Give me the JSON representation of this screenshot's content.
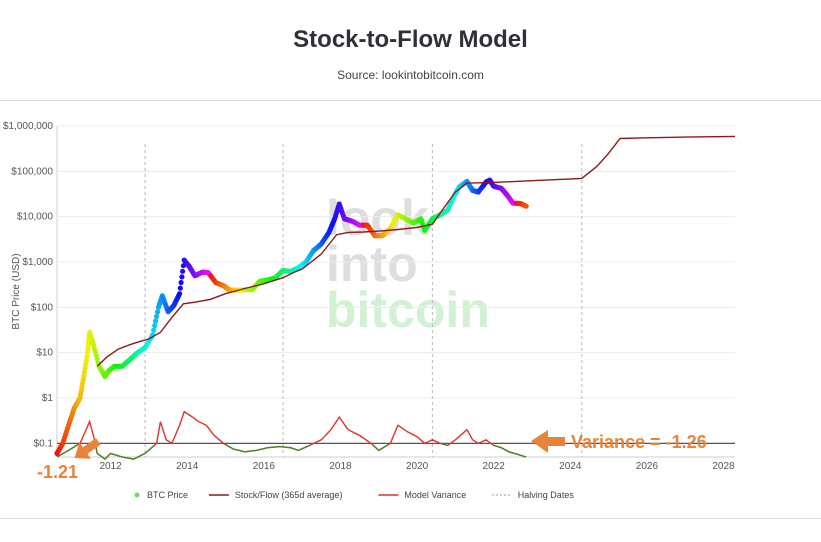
{
  "header": {
    "title": "Stock-to-Flow Model",
    "subtitle": "Source: lookintobitcoin.com"
  },
  "watermark": [
    "look",
    "into",
    "bitcoin"
  ],
  "chart_data": {
    "type": "line",
    "ylabel": "BTC Price (USD)",
    "y_scale": "log",
    "ylim": [
      0.05,
      1000000
    ],
    "xlim": [
      2010.6,
      2028.3
    ],
    "y_ticks": [
      {
        "value": 0.1,
        "label": "$0.1"
      },
      {
        "value": 1,
        "label": "$1"
      },
      {
        "value": 10,
        "label": "$10"
      },
      {
        "value": 100,
        "label": "$100"
      },
      {
        "value": 1000,
        "label": "$1,000"
      },
      {
        "value": 10000,
        "label": "$10,000"
      },
      {
        "value": 100000,
        "label": "$100,000"
      },
      {
        "value": 1000000,
        "label": "$1,000,000"
      }
    ],
    "x_ticks": [
      {
        "value": 2012,
        "label": "2012"
      },
      {
        "value": 2014,
        "label": "2014"
      },
      {
        "value": 2016,
        "label": "2016"
      },
      {
        "value": 2018,
        "label": "2018"
      },
      {
        "value": 2020,
        "label": "2020"
      },
      {
        "value": 2022,
        "label": "2022"
      },
      {
        "value": 2024,
        "label": "2024"
      },
      {
        "value": 2026,
        "label": "2026"
      },
      {
        "value": 2028,
        "label": "2028"
      }
    ],
    "halving_dates": [
      2012.9,
      2016.5,
      2020.4,
      2024.3
    ],
    "series": [
      {
        "name": "BTC Price",
        "color": "#66e066",
        "style": "markers-rainbow",
        "points": [
          [
            2010.6,
            0.06
          ],
          [
            2010.75,
            0.1
          ],
          [
            2010.9,
            0.25
          ],
          [
            2011.05,
            0.6
          ],
          [
            2011.2,
            1
          ],
          [
            2011.3,
            3
          ],
          [
            2011.4,
            10
          ],
          [
            2011.45,
            28
          ],
          [
            2011.55,
            15
          ],
          [
            2011.7,
            5
          ],
          [
            2011.85,
            3
          ],
          [
            2011.95,
            4
          ],
          [
            2012.1,
            5
          ],
          [
            2012.3,
            5
          ],
          [
            2012.5,
            7
          ],
          [
            2012.7,
            10
          ],
          [
            2012.9,
            13
          ],
          [
            2013.1,
            25
          ],
          [
            2013.25,
            100
          ],
          [
            2013.35,
            180
          ],
          [
            2013.5,
            80
          ],
          [
            2013.65,
            110
          ],
          [
            2013.8,
            200
          ],
          [
            2013.92,
            1100
          ],
          [
            2014.05,
            800
          ],
          [
            2014.2,
            500
          ],
          [
            2014.4,
            600
          ],
          [
            2014.55,
            580
          ],
          [
            2014.75,
            350
          ],
          [
            2014.95,
            300
          ],
          [
            2015.1,
            240
          ],
          [
            2015.4,
            240
          ],
          [
            2015.7,
            250
          ],
          [
            2015.9,
            380
          ],
          [
            2016.1,
            400
          ],
          [
            2016.3,
            450
          ],
          [
            2016.5,
            650
          ],
          [
            2016.7,
            620
          ],
          [
            2016.9,
            750
          ],
          [
            2017.1,
            1000
          ],
          [
            2017.3,
            1800
          ],
          [
            2017.5,
            2500
          ],
          [
            2017.7,
            4500
          ],
          [
            2017.85,
            9000
          ],
          [
            2017.97,
            19000
          ],
          [
            2018.1,
            9000
          ],
          [
            2018.3,
            8000
          ],
          [
            2018.5,
            6500
          ],
          [
            2018.7,
            6500
          ],
          [
            2018.9,
            3800
          ],
          [
            2019.1,
            3800
          ],
          [
            2019.3,
            5500
          ],
          [
            2019.5,
            11000
          ],
          [
            2019.7,
            9000
          ],
          [
            2019.9,
            7200
          ],
          [
            2020.1,
            9000
          ],
          [
            2020.2,
            5000
          ],
          [
            2020.4,
            9000
          ],
          [
            2020.6,
            11000
          ],
          [
            2020.8,
            14000
          ],
          [
            2020.97,
            29000
          ],
          [
            2021.1,
            45000
          ],
          [
            2021.3,
            60000
          ],
          [
            2021.45,
            38000
          ],
          [
            2021.6,
            35000
          ],
          [
            2021.8,
            58000
          ],
          [
            2021.9,
            64000
          ],
          [
            2022.0,
            47000
          ],
          [
            2022.2,
            42000
          ],
          [
            2022.35,
            30000
          ],
          [
            2022.5,
            20000
          ],
          [
            2022.7,
            19500
          ],
          [
            2022.85,
            17000
          ]
        ]
      },
      {
        "name": "Stock/Flow (365d average)",
        "color": "#8b1a1a",
        "style": "line",
        "points": [
          [
            2011.65,
            5
          ],
          [
            2011.9,
            8
          ],
          [
            2012.2,
            12
          ],
          [
            2012.5,
            15
          ],
          [
            2012.8,
            18
          ],
          [
            2013.0,
            20
          ],
          [
            2013.3,
            28
          ],
          [
            2013.6,
            60
          ],
          [
            2013.9,
            120
          ],
          [
            2014.2,
            130
          ],
          [
            2014.6,
            150
          ],
          [
            2015.0,
            200
          ],
          [
            2015.5,
            260
          ],
          [
            2016.0,
            330
          ],
          [
            2016.5,
            450
          ],
          [
            2016.8,
            600
          ],
          [
            2017.0,
            700
          ],
          [
            2017.5,
            1500
          ],
          [
            2017.9,
            4000
          ],
          [
            2018.2,
            4500
          ],
          [
            2018.6,
            4600
          ],
          [
            2019.0,
            4800
          ],
          [
            2019.5,
            5200
          ],
          [
            2020.0,
            5800
          ],
          [
            2020.4,
            6800
          ],
          [
            2020.6,
            12000
          ],
          [
            2021.0,
            35000
          ],
          [
            2021.3,
            55000
          ],
          [
            2021.6,
            56000
          ],
          [
            2022.0,
            57000
          ],
          [
            2023.0,
            62000
          ],
          [
            2024.3,
            70000
          ],
          [
            2024.7,
            130000
          ],
          [
            2025.0,
            250000
          ],
          [
            2025.3,
            530000
          ],
          [
            2026.0,
            550000
          ],
          [
            2027.0,
            570000
          ],
          [
            2028.3,
            590000
          ]
        ]
      },
      {
        "name": "Model Variance",
        "color": "#e03030",
        "style": "line",
        "points": [
          [
            2010.6,
            0.05
          ],
          [
            2010.9,
            0.07
          ],
          [
            2011.2,
            0.1
          ],
          [
            2011.45,
            0.3
          ],
          [
            2011.55,
            0.15
          ],
          [
            2011.65,
            0.06
          ],
          [
            2011.85,
            0.045
          ],
          [
            2012.0,
            0.06
          ],
          [
            2012.3,
            0.05
          ],
          [
            2012.6,
            0.045
          ],
          [
            2012.9,
            0.06
          ],
          [
            2013.2,
            0.1
          ],
          [
            2013.3,
            0.3
          ],
          [
            2013.45,
            0.12
          ],
          [
            2013.6,
            0.1
          ],
          [
            2013.8,
            0.25
          ],
          [
            2013.92,
            0.5
          ],
          [
            2014.1,
            0.4
          ],
          [
            2014.3,
            0.3
          ],
          [
            2014.5,
            0.25
          ],
          [
            2014.7,
            0.15
          ],
          [
            2014.95,
            0.1
          ],
          [
            2015.2,
            0.075
          ],
          [
            2015.5,
            0.065
          ],
          [
            2015.8,
            0.07
          ],
          [
            2016.1,
            0.08
          ],
          [
            2016.4,
            0.085
          ],
          [
            2016.7,
            0.08
          ],
          [
            2016.9,
            0.07
          ],
          [
            2017.2,
            0.09
          ],
          [
            2017.5,
            0.12
          ],
          [
            2017.75,
            0.2
          ],
          [
            2017.97,
            0.38
          ],
          [
            2018.2,
            0.2
          ],
          [
            2018.5,
            0.15
          ],
          [
            2018.8,
            0.1
          ],
          [
            2019.0,
            0.07
          ],
          [
            2019.3,
            0.1
          ],
          [
            2019.5,
            0.25
          ],
          [
            2019.75,
            0.18
          ],
          [
            2020.0,
            0.14
          ],
          [
            2020.2,
            0.1
          ],
          [
            2020.4,
            0.12
          ],
          [
            2020.6,
            0.1
          ],
          [
            2020.8,
            0.09
          ],
          [
            2021.0,
            0.12
          ],
          [
            2021.3,
            0.2
          ],
          [
            2021.45,
            0.12
          ],
          [
            2021.6,
            0.1
          ],
          [
            2021.8,
            0.12
          ],
          [
            2022.0,
            0.09
          ],
          [
            2022.2,
            0.08
          ],
          [
            2022.4,
            0.065
          ],
          [
            2022.6,
            0.058
          ],
          [
            2022.85,
            0.05
          ]
        ]
      }
    ],
    "variance_reference": 0.1,
    "legend": {
      "placement": "bottom",
      "items": [
        {
          "label": "BTC Price",
          "color": "#66e066",
          "symbol": "dot"
        },
        {
          "label": "Stock/Flow (365d average)",
          "color": "#8b1a1a",
          "symbol": "line"
        },
        {
          "label": "Model Variance",
          "color": "#e03030",
          "symbol": "line"
        },
        {
          "label": "Halving Dates",
          "color": "#aaaaaa",
          "symbol": "dash"
        }
      ]
    },
    "annotations": [
      {
        "text": "-1.21",
        "color": "#e8833a"
      },
      {
        "text": "Variance = -1.26",
        "color": "#e8833a"
      }
    ]
  }
}
